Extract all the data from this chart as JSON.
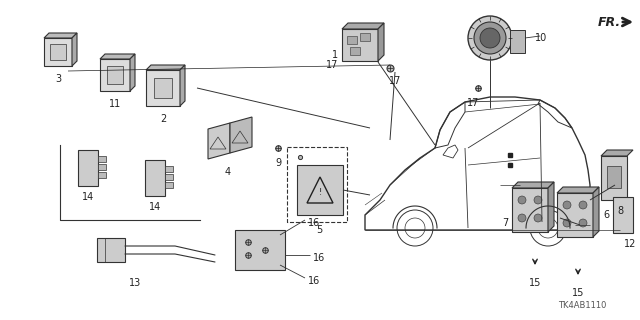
{
  "background_color": "#ffffff",
  "diagram_code": "TK4AB1110",
  "line_color": "#333333",
  "dark_color": "#222222",
  "gray_color": "#888888",
  "light_gray": "#cccccc",
  "mid_gray": "#666666"
}
